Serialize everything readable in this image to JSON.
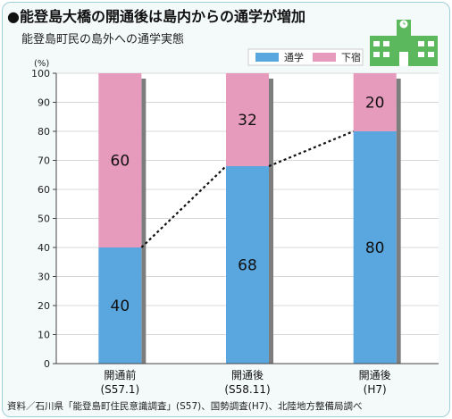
{
  "title": "●能登島大橋の開通後は島内からの通学が増加",
  "subtitle": "能登島町民の島外への通学実態",
  "source": "資料／石川県「能登島町住民意識調査」(S57)、国勢調査(H7)、北陸地方整備局調べ",
  "colors": {
    "commute": "#5aa7e0",
    "boarding": "#e69abc",
    "shadow": "#7d7d7d",
    "school_icon": "#5cb85c",
    "grid": "#d8d8d8"
  },
  "icons": [
    "school-building-icon"
  ],
  "chart_data": {
    "type": "bar",
    "stacked": true,
    "unit": "(%)",
    "categories": [
      {
        "line1": "開通前",
        "line2": "(S57.1)"
      },
      {
        "line1": "開通後",
        "line2": "(S58.11)"
      },
      {
        "line1": "開通後",
        "line2": "(H7)"
      }
    ],
    "series": [
      {
        "name": "通学",
        "values": [
          40,
          68,
          80
        ]
      },
      {
        "name": "下宿",
        "values": [
          60,
          32,
          20
        ]
      }
    ],
    "yticks": [
      0,
      10,
      20,
      30,
      40,
      50,
      60,
      70,
      80,
      90,
      100
    ],
    "ylim": [
      0,
      100
    ],
    "grid": true,
    "legend": "top-right",
    "connector": "dotted line joining top of 通学 segments"
  }
}
